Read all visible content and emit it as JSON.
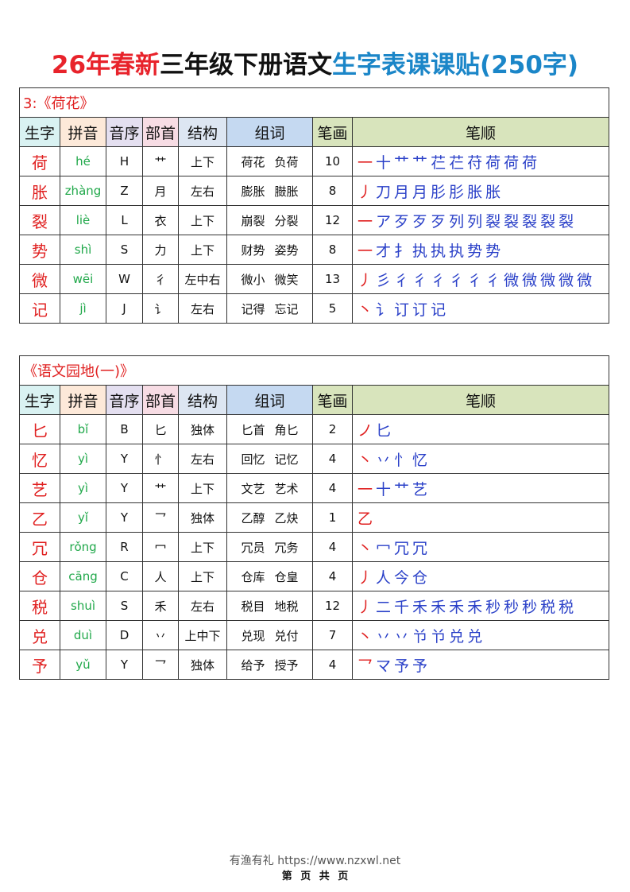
{
  "title": {
    "part1": "26年春新",
    "part2": "三年级下册语文",
    "part3": "生字表课课贴(250字)"
  },
  "colors": {
    "red": "#e8232b",
    "blue": "#1b86c8",
    "pinyin_green": "#20a84a",
    "stroke_blue": "#2a40c8"
  },
  "headers": [
    "生字",
    "拼音",
    "音序",
    "部首",
    "结构",
    "组词",
    "笔画",
    "笔顺"
  ],
  "header_colors": [
    "#d9f2f2",
    "#fde9d9",
    "#e4dff0",
    "#f7dce4",
    "#dde6f2",
    "#c5d9f1",
    "#d8e4bc",
    "#d8e4bc"
  ],
  "tables": [
    {
      "lesson": "3:《荷花》",
      "rows": [
        {
          "char": "荷",
          "pinyin": "hé",
          "initial": "H",
          "radical": "艹",
          "structure": "上下",
          "words": [
            "荷花",
            "负荷"
          ],
          "strokes": "10",
          "order": [
            "一",
            "十",
            "艹",
            "艹",
            "芢",
            "芢",
            "苻",
            "荷",
            "荷",
            "荷"
          ]
        },
        {
          "char": "胀",
          "pinyin": "zhàng",
          "initial": "Z",
          "radical": "月",
          "structure": "左右",
          "words": [
            "膨胀",
            "臌胀"
          ],
          "strokes": "8",
          "order": [
            "丿",
            "刀",
            "月",
            "月",
            "肜",
            "肜",
            "胀",
            "胀"
          ]
        },
        {
          "char": "裂",
          "pinyin": "liè",
          "initial": "L",
          "radical": "衣",
          "structure": "上下",
          "words": [
            "崩裂",
            "分裂"
          ],
          "strokes": "12",
          "order": [
            "一",
            "ア",
            "歹",
            "歹",
            "歹",
            "列",
            "列",
            "裂",
            "裂",
            "裂",
            "裂",
            "裂"
          ]
        },
        {
          "char": "势",
          "pinyin": "shì",
          "initial": "S",
          "radical": "力",
          "structure": "上下",
          "words": [
            "财势",
            "姿势"
          ],
          "strokes": "8",
          "order": [
            "一",
            "才",
            "扌",
            "执",
            "执",
            "执",
            "势",
            "势"
          ]
        },
        {
          "char": "微",
          "pinyin": "wēi",
          "initial": "W",
          "radical": "彳",
          "structure": "左中右",
          "words": [
            "微小",
            "微笑"
          ],
          "strokes": "13",
          "order": [
            "丿",
            "彡",
            "彳",
            "彳",
            "彳",
            "彳",
            "彳",
            "彳",
            "微",
            "微",
            "微",
            "微",
            "微"
          ]
        },
        {
          "char": "记",
          "pinyin": "jì",
          "initial": "J",
          "radical": "讠",
          "structure": "左右",
          "words": [
            "记得",
            "忘记"
          ],
          "strokes": "5",
          "order": [
            "丶",
            "讠",
            "订",
            "订",
            "记"
          ]
        }
      ]
    },
    {
      "lesson": "《语文园地(一)》",
      "rows": [
        {
          "char": "匕",
          "pinyin": "bǐ",
          "initial": "B",
          "radical": "匕",
          "structure": "独体",
          "words": [
            "匕首",
            "角匕"
          ],
          "strokes": "2",
          "order": [
            "ノ",
            "匕"
          ]
        },
        {
          "char": "忆",
          "pinyin": "yì",
          "initial": "Y",
          "radical": "忄",
          "structure": "左右",
          "words": [
            "回忆",
            "记忆"
          ],
          "strokes": "4",
          "order": [
            "丶",
            "丷",
            "忄",
            "忆"
          ]
        },
        {
          "char": "艺",
          "pinyin": "yì",
          "initial": "Y",
          "radical": "艹",
          "structure": "上下",
          "words": [
            "文艺",
            "艺术"
          ],
          "strokes": "4",
          "order": [
            "一",
            "十",
            "艹",
            "艺"
          ]
        },
        {
          "char": "乙",
          "pinyin": "yǐ",
          "initial": "Y",
          "radical": "乛",
          "structure": "独体",
          "words": [
            "乙醇",
            "乙炔"
          ],
          "strokes": "1",
          "order": [
            "乙"
          ]
        },
        {
          "char": "冗",
          "pinyin": "rǒng",
          "initial": "R",
          "radical": "冖",
          "structure": "上下",
          "words": [
            "冗员",
            "冗务"
          ],
          "strokes": "4",
          "order": [
            "丶",
            "冖",
            "冗",
            "冗"
          ]
        },
        {
          "char": "仓",
          "pinyin": "cāng",
          "initial": "C",
          "radical": "人",
          "structure": "上下",
          "words": [
            "仓库",
            "仓皇"
          ],
          "strokes": "4",
          "order": [
            "丿",
            "人",
            "今",
            "仓"
          ]
        },
        {
          "char": "税",
          "pinyin": "shuì",
          "initial": "S",
          "radical": "禾",
          "structure": "左右",
          "words": [
            "税目",
            "地税"
          ],
          "strokes": "12",
          "order": [
            "丿",
            "二",
            "千",
            "禾",
            "禾",
            "禾",
            "禾",
            "秒",
            "秒",
            "秒",
            "税",
            "税"
          ]
        },
        {
          "char": "兑",
          "pinyin": "duì",
          "initial": "D",
          "radical": "丷",
          "structure": "上中下",
          "words": [
            "兑现",
            "兑付"
          ],
          "strokes": "7",
          "order": [
            "丶",
            "丷",
            "丷",
            "兯",
            "兯",
            "兑",
            "兑"
          ]
        },
        {
          "char": "予",
          "pinyin": "yǔ",
          "initial": "Y",
          "radical": "乛",
          "structure": "独体",
          "words": [
            "给予",
            "授予"
          ],
          "strokes": "4",
          "order": [
            "乛",
            "マ",
            "予",
            "予"
          ]
        }
      ]
    }
  ],
  "footer": {
    "line1": "有渔有礼 https://www.nzxwl.net",
    "line2": "第 页 共  页"
  }
}
